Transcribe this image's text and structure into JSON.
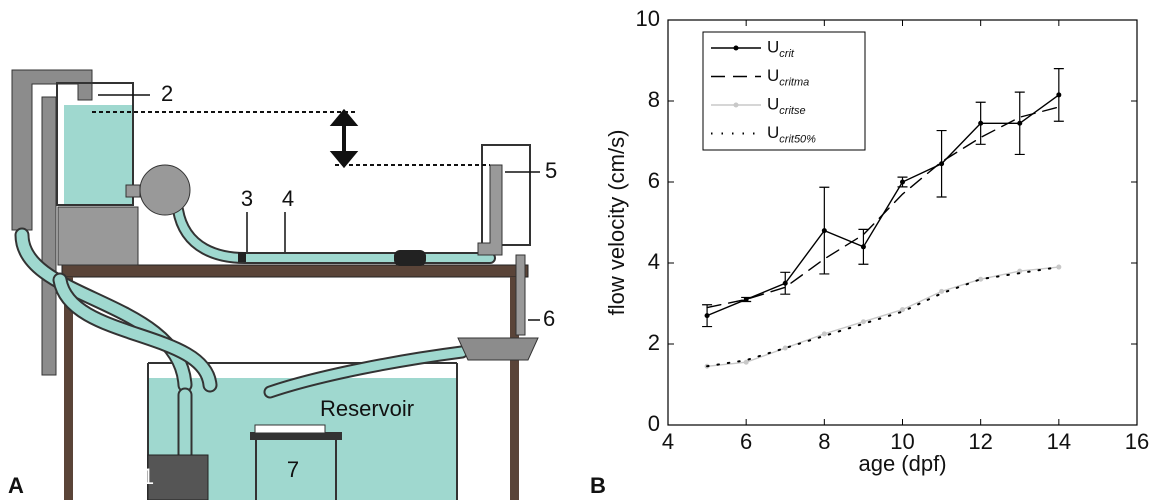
{
  "panel_a": {
    "panel_label": "A",
    "labels": [
      "1",
      "2",
      "3",
      "4",
      "5",
      "6",
      "7"
    ],
    "reservoir": "Reservoir"
  },
  "chart_data": {
    "type": "line",
    "panel_label": "B",
    "x_label": "age (dpf)",
    "y_label": "flow velocity (cm/s)",
    "x": [
      5,
      6,
      7,
      8,
      9,
      10,
      11,
      12,
      13,
      14
    ],
    "series": [
      {
        "name": "Ucrit",
        "color": "#000000",
        "line_style": "solid",
        "marker": true,
        "values": [
          2.7,
          3.1,
          3.5,
          4.8,
          4.4,
          6.0,
          6.45,
          7.45,
          7.45,
          8.15
        ],
        "errors": [
          0.27,
          0.05,
          0.27,
          1.07,
          0.43,
          0.12,
          0.82,
          0.52,
          0.77,
          0.65
        ]
      },
      {
        "name": "Ucritma",
        "color": "#000000",
        "line_style": "dashed",
        "marker": false,
        "values": [
          2.9,
          3.1,
          3.4,
          4.1,
          4.7,
          5.7,
          6.5,
          7.1,
          7.6,
          7.85
        ]
      },
      {
        "name": "Ucritse",
        "color": "#c8c8c8",
        "line_style": "solid",
        "marker": true,
        "values": [
          1.45,
          1.55,
          1.9,
          2.25,
          2.55,
          2.85,
          3.3,
          3.6,
          3.8,
          3.9
        ]
      },
      {
        "name": "Ucrit50%",
        "color": "#000000",
        "line_style": "dotted",
        "marker": false,
        "values": [
          1.45,
          1.6,
          1.9,
          2.2,
          2.5,
          2.8,
          3.25,
          3.6,
          3.75,
          3.9
        ]
      }
    ],
    "xlim": [
      4,
      16
    ],
    "xticks": [
      4,
      6,
      8,
      10,
      12,
      14,
      16
    ],
    "ylim": [
      0,
      10
    ],
    "yticks": [
      0,
      2,
      4,
      6,
      8,
      10
    ],
    "legend": "upper left"
  }
}
